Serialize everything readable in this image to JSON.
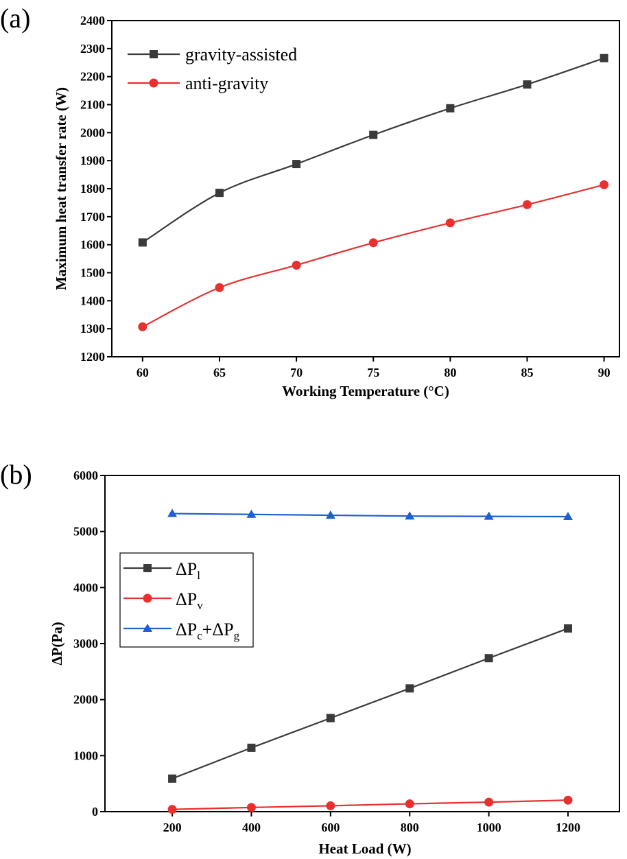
{
  "chart_data": [
    {
      "id": "a",
      "panel_label": "(a)",
      "type": "line",
      "title": "",
      "xlabel": "Working Temperature (°C)",
      "ylabel": "Maximum heat transfer rate (W)",
      "xlim": [
        58,
        91
      ],
      "ylim": [
        1200,
        2400
      ],
      "xticks": [
        60,
        65,
        70,
        75,
        80,
        85,
        90
      ],
      "yticks": [
        1200,
        1300,
        1400,
        1500,
        1600,
        1700,
        1800,
        1900,
        2000,
        2100,
        2200,
        2300,
        2400
      ],
      "x": [
        60,
        65,
        70,
        75,
        80,
        85,
        90
      ],
      "legend_position": "top-left",
      "series": [
        {
          "name": "gravity-assisted",
          "color": "#3a3a3a",
          "marker": "square",
          "values": [
            1608,
            1785,
            1888,
            1992,
            2087,
            2172,
            2266
          ]
        },
        {
          "name": "anti-gravity",
          "color": "#e8302f",
          "marker": "circle",
          "values": [
            1307,
            1447,
            1527,
            1607,
            1678,
            1743,
            1814
          ]
        }
      ]
    },
    {
      "id": "b",
      "panel_label": "(b)",
      "type": "line",
      "title": "",
      "xlabel": "Heat Load (W)",
      "ylabel": "ΔP(Pa)",
      "xlim": [
        30,
        1330
      ],
      "ylim": [
        0,
        6000
      ],
      "xticks": [
        200,
        400,
        600,
        800,
        1000,
        1200
      ],
      "yticks": [
        0,
        1000,
        2000,
        3000,
        4000,
        5000,
        6000
      ],
      "x": [
        200,
        400,
        600,
        800,
        1000,
        1200
      ],
      "legend_position": "center-left",
      "series": [
        {
          "name": "ΔPl",
          "legend_main": "ΔP",
          "legend_sub": "l",
          "color": "#3a3a3a",
          "marker": "square",
          "values": [
            590,
            1140,
            1670,
            2200,
            2740,
            3270
          ]
        },
        {
          "name": "ΔPv",
          "legend_main": "ΔP",
          "legend_sub": "v",
          "color": "#e8302f",
          "marker": "circle",
          "values": [
            40,
            75,
            105,
            140,
            170,
            205
          ]
        },
        {
          "name": "ΔPc+ΔPg",
          "legend_main": "ΔP",
          "legend_sub": "c",
          "legend_main2": "+ΔP",
          "legend_sub2": "g",
          "color": "#1f5fd0",
          "marker": "triangle",
          "values": [
            5320,
            5305,
            5290,
            5275,
            5270,
            5265
          ]
        }
      ]
    }
  ]
}
